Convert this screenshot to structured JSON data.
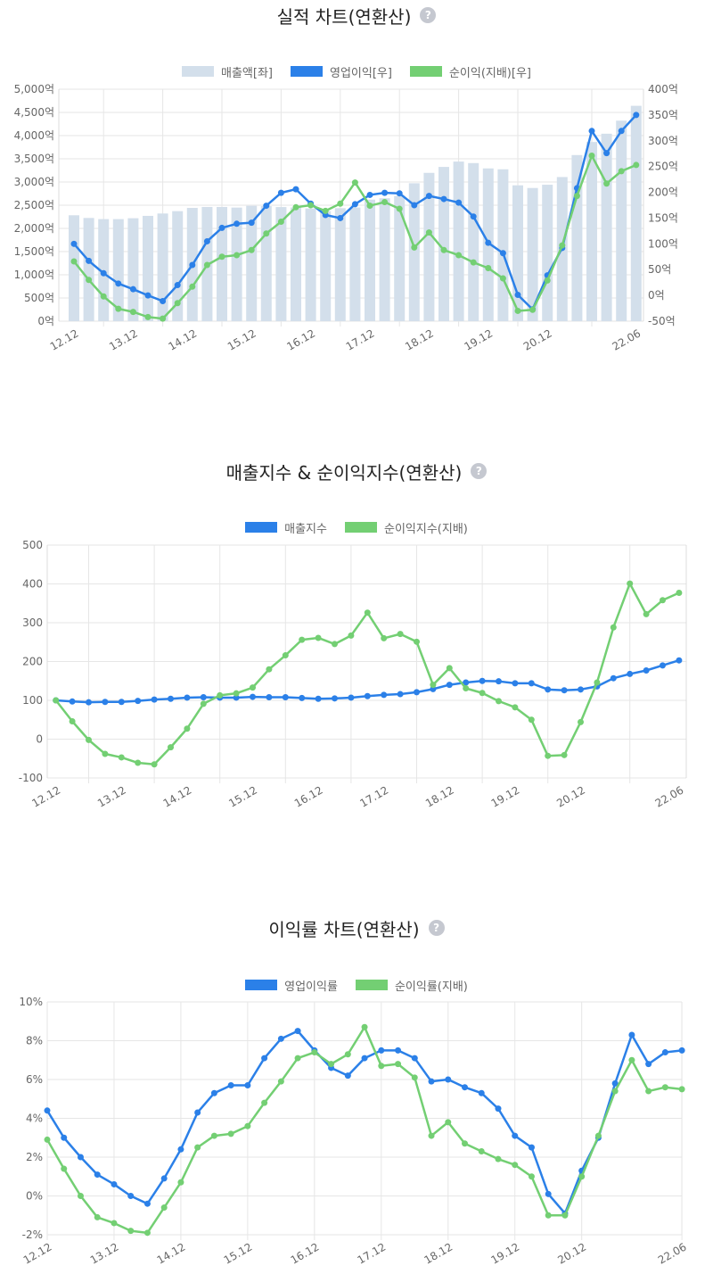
{
  "colors": {
    "sales": "#d3dfeb",
    "blue": "#2b80e8",
    "green": "#73cf73",
    "grid": "#e6e6e6",
    "text": "#666666"
  },
  "charts": [
    {
      "title": "실적 차트(연환산)",
      "help_icon": "question-circle-icon",
      "help_label": "?",
      "legend": [
        {
          "label": "매출액[좌]",
          "color": "#d3dfeb"
        },
        {
          "label": "영업이익[우]",
          "color": "#2b80e8"
        },
        {
          "label": "순이익(지배)[우]",
          "color": "#73cf73"
        }
      ]
    },
    {
      "title": "매출지수 & 순이익지수(연환산)",
      "help_icon": "question-circle-icon",
      "help_label": "?",
      "legend": [
        {
          "label": "매출지수",
          "color": "#2b80e8"
        },
        {
          "label": "순이익지수(지배)",
          "color": "#73cf73"
        }
      ]
    },
    {
      "title": "이익률 차트(연환산)",
      "help_icon": "question-circle-icon",
      "help_label": "?",
      "legend": [
        {
          "label": "영업이익률",
          "color": "#2b80e8"
        },
        {
          "label": "순이익률(지배)",
          "color": "#73cf73"
        }
      ]
    }
  ],
  "chart_data": [
    {
      "type": "bar+line",
      "title": "실적 차트(연환산)",
      "x_tick_labels": [
        "12.12",
        "13.12",
        "14.12",
        "15.12",
        "16.12",
        "17.12",
        "18.12",
        "19.12",
        "20.12",
        "22.06"
      ],
      "x_tick_index": [
        0,
        4,
        8,
        12,
        16,
        20,
        24,
        28,
        32,
        38
      ],
      "y_left": {
        "range": [
          0,
          5000
        ],
        "ticks": [
          "5,000억",
          "4,500억",
          "4,000억",
          "3,500억",
          "3,000억",
          "2,500억",
          "2,000억",
          "1,500억",
          "1,000억",
          "500억",
          "0억"
        ]
      },
      "y_right": {
        "range": [
          -50,
          400
        ],
        "ticks": [
          "400억",
          "350억",
          "300억",
          "250억",
          "200억",
          "150억",
          "100억",
          "50억",
          "0억",
          "-50억"
        ]
      },
      "grid": true,
      "legend_position": "top",
      "series": [
        {
          "name": "매출액[좌]",
          "type": "bar",
          "axis": "left",
          "values": [
            2283,
            2225,
            2200,
            2200,
            2219,
            2270,
            2321,
            2372,
            2442,
            2462,
            2462,
            2449,
            2487,
            2480,
            2460,
            2450,
            2430,
            2372,
            2436,
            2450,
            2620,
            2650,
            2700,
            2973,
            3197,
            3325,
            3440,
            3408,
            3293,
            3274,
            2928,
            2871,
            2941,
            3107,
            3581,
            3862,
            4041,
            4322,
            4642
          ]
        },
        {
          "name": "영업이익[우]",
          "type": "line",
          "axis": "right",
          "values": [
            100,
            67,
            43,
            23,
            12,
            0,
            -11,
            20,
            59,
            105,
            131,
            139,
            141,
            174,
            199,
            206,
            178,
            156,
            150,
            177,
            195,
            199,
            198,
            175,
            193,
            187,
            180,
            153,
            102,
            82,
            1,
            -27,
            39,
            92,
            208,
            319,
            276,
            319,
            350
          ]
        },
        {
          "name": "순이익(지배)[우]",
          "type": "line",
          "axis": "right",
          "values": [
            66,
            30,
            -2,
            -26,
            -32,
            -42,
            -45,
            -15,
            17,
            59,
            75,
            78,
            88,
            120,
            143,
            171,
            175,
            164,
            178,
            219,
            174,
            181,
            168,
            93,
            122,
            88,
            78,
            64,
            53,
            33,
            -30,
            -28,
            29,
            97,
            193,
            271,
            217,
            241,
            253
          ]
        }
      ]
    },
    {
      "type": "line",
      "title": "매출지수 & 순이익지수(연환산)",
      "x_tick_labels": [
        "12.12",
        "13.12",
        "14.12",
        "15.12",
        "16.12",
        "17.12",
        "18.12",
        "19.12",
        "20.12",
        "22.06"
      ],
      "x_tick_index": [
        0,
        4,
        8,
        12,
        16,
        20,
        24,
        28,
        32,
        38
      ],
      "y": {
        "range": [
          -100,
          500
        ],
        "ticks": [
          "500",
          "400",
          "300",
          "200",
          "100",
          "0",
          "-100"
        ]
      },
      "grid": true,
      "legend_position": "top",
      "series": [
        {
          "name": "매출지수",
          "values": [
            100,
            97,
            95,
            96,
            96,
            98.5,
            102,
            104,
            107,
            108,
            107,
            107,
            109,
            108,
            108,
            106,
            104,
            105,
            107,
            111,
            114,
            116,
            121,
            129,
            140,
            146,
            150,
            149,
            144,
            144,
            128,
            126,
            128,
            136,
            157,
            168,
            177,
            190,
            203
          ]
        },
        {
          "name": "순이익지수(지배)",
          "values": [
            100,
            46,
            -2,
            -38,
            -47,
            -61,
            -65,
            -21,
            27,
            91,
            113,
            118,
            133,
            180,
            216,
            256,
            261,
            245,
            267,
            326,
            260,
            271,
            251,
            140,
            183,
            131,
            119,
            98,
            82,
            50,
            -43,
            -41,
            44,
            146,
            288,
            401,
            322,
            358,
            377
          ]
        }
      ]
    },
    {
      "type": "line",
      "title": "이익률 차트(연환산)",
      "x_tick_labels": [
        "12.12",
        "13.12",
        "14.12",
        "15.12",
        "16.12",
        "17.12",
        "18.12",
        "19.12",
        "20.12",
        "22.06"
      ],
      "x_tick_index": [
        0,
        4,
        8,
        12,
        16,
        20,
        24,
        28,
        32,
        38
      ],
      "y": {
        "range": [
          -2,
          10
        ],
        "ticks": [
          "10%",
          "8%",
          "6%",
          "4%",
          "2%",
          "0%",
          "-2%"
        ]
      },
      "grid": true,
      "legend_position": "top",
      "series": [
        {
          "name": "영업이익률",
          "values": [
            4.4,
            3.0,
            2.0,
            1.1,
            0.6,
            0.0,
            -0.4,
            0.9,
            2.4,
            4.3,
            5.3,
            5.7,
            5.7,
            7.1,
            8.1,
            8.5,
            7.5,
            6.6,
            6.2,
            7.1,
            7.5,
            7.5,
            7.1,
            5.9,
            6.0,
            5.6,
            5.3,
            4.5,
            3.1,
            2.5,
            0.1,
            -0.9,
            1.3,
            3.0,
            5.8,
            8.3,
            6.8,
            7.4,
            7.5
          ]
        },
        {
          "name": "순이익률(지배)",
          "values": [
            2.9,
            1.4,
            0.0,
            -1.1,
            -1.4,
            -1.8,
            -1.9,
            -0.6,
            0.7,
            2.5,
            3.1,
            3.2,
            3.6,
            4.8,
            5.9,
            7.1,
            7.4,
            6.8,
            7.3,
            8.7,
            6.7,
            6.8,
            6.1,
            3.1,
            3.8,
            2.7,
            2.3,
            1.9,
            1.6,
            1.0,
            -1.0,
            -1.0,
            1.0,
            3.1,
            5.4,
            7.0,
            5.4,
            5.6,
            5.5
          ]
        }
      ]
    }
  ]
}
